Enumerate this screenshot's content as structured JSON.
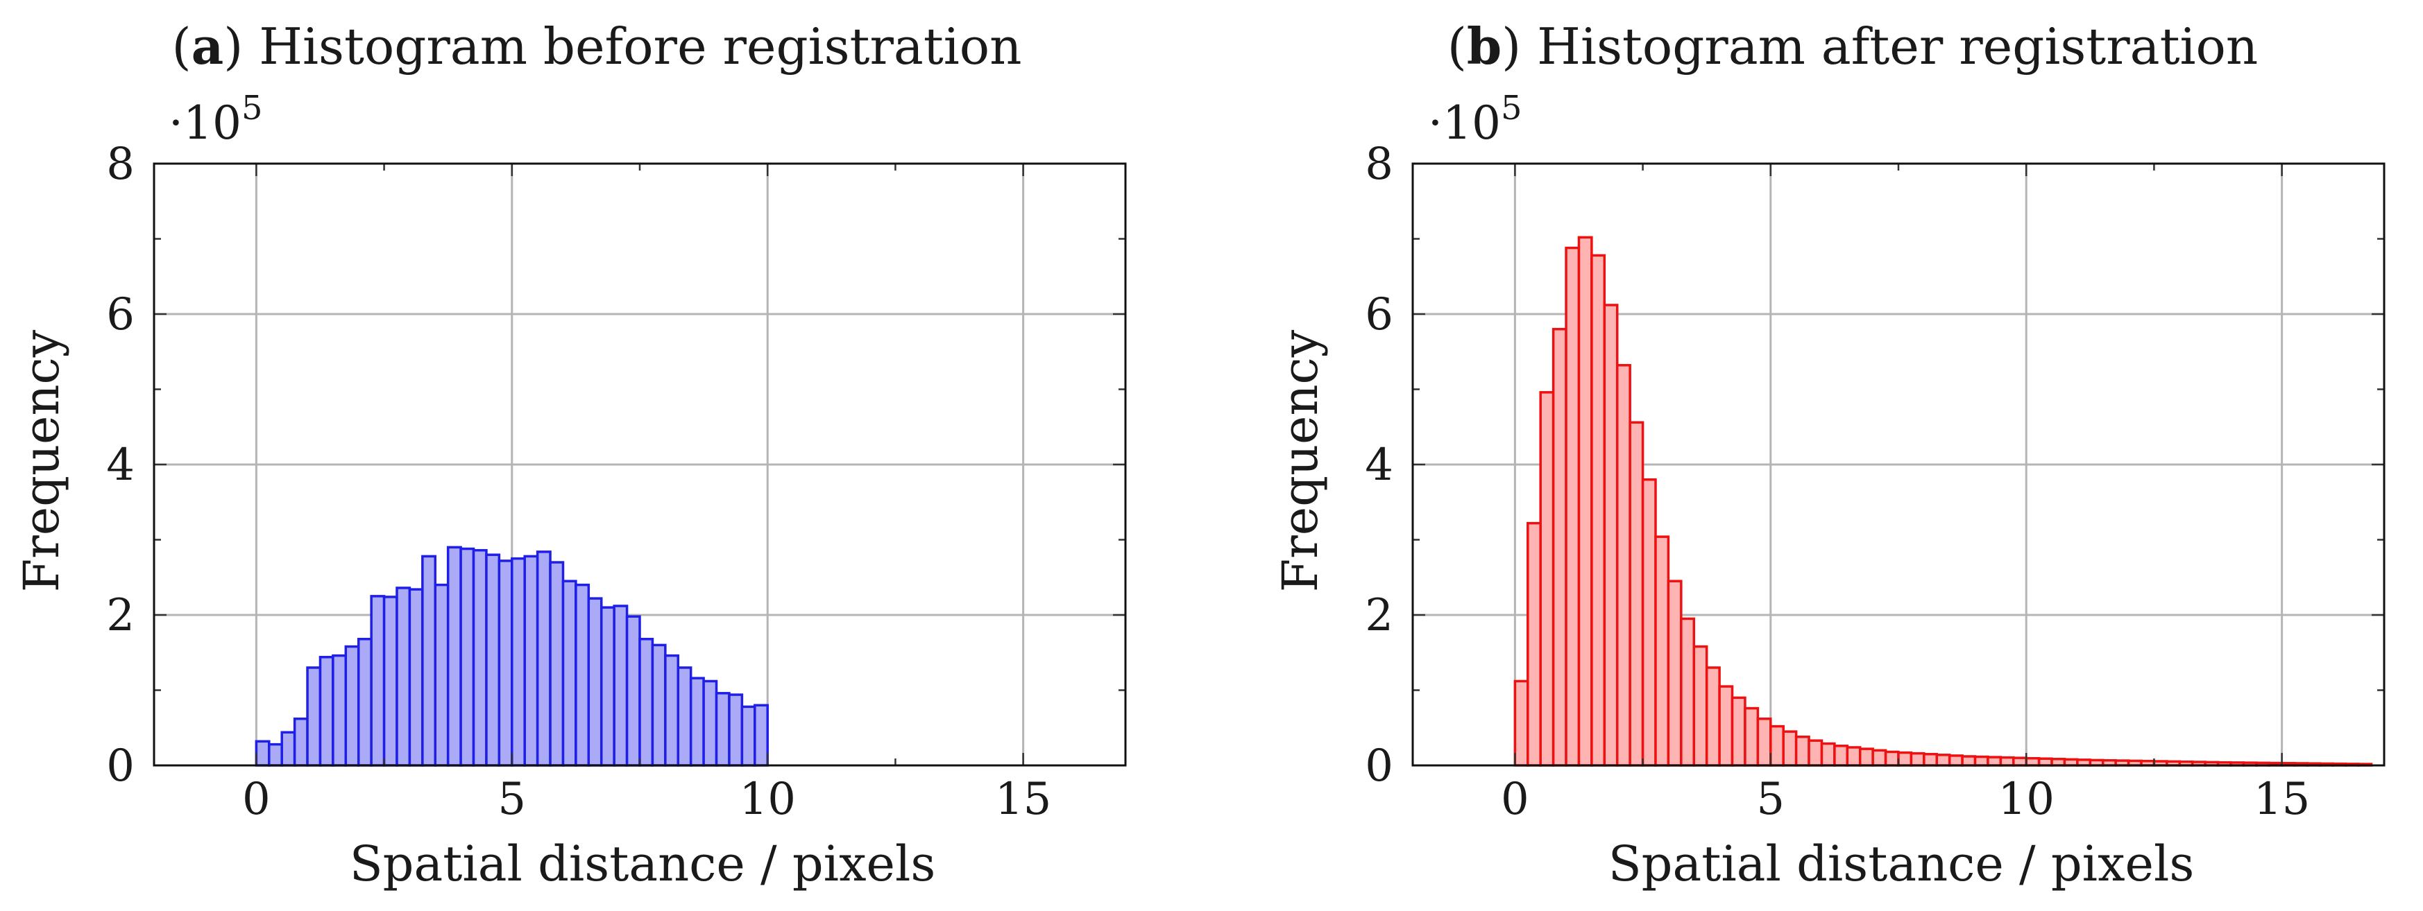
{
  "chart_data": [
    {
      "type": "bar",
      "title_prefix": "(",
      "title_letter": "a",
      "title_rest": ") Histogram before registration",
      "xlabel": "Spatial distance / pixels",
      "ylabel": "Frequency",
      "multiplier_prefix": "·10",
      "multiplier_exp": "5",
      "xlim": [
        -2,
        17
      ],
      "ylim": [
        0,
        8
      ],
      "xticks": [
        0,
        5,
        10,
        15
      ],
      "yticks": [
        0,
        2,
        4,
        6,
        8
      ],
      "x_tick_labels": [
        "0",
        "5",
        "10",
        "15"
      ],
      "y_tick_labels": [
        "0",
        "2",
        "4",
        "6",
        "8"
      ],
      "grid": true,
      "bin_width": 0.25,
      "bin_start": 0,
      "values": [
        0.32,
        0.28,
        0.44,
        0.62,
        1.3,
        1.44,
        1.46,
        1.58,
        1.68,
        2.25,
        2.24,
        2.36,
        2.34,
        2.78,
        2.4,
        2.9,
        2.88,
        2.86,
        2.8,
        2.72,
        2.75,
        2.78,
        2.84,
        2.7,
        2.45,
        2.4,
        2.22,
        2.1,
        2.12,
        1.98,
        1.68,
        1.6,
        1.46,
        1.3,
        1.16,
        1.12,
        0.96,
        0.94,
        0.78,
        0.8
      ],
      "colors": {
        "stroke": "#1f1fe6",
        "fill": "#aaaaf7"
      }
    },
    {
      "type": "bar",
      "title_prefix": "(",
      "title_letter": "b",
      "title_rest": ") Histogram after registration",
      "xlabel": "Spatial distance / pixels",
      "ylabel": "Frequency",
      "multiplier_prefix": "·10",
      "multiplier_exp": "5",
      "xlim": [
        -2,
        17
      ],
      "ylim": [
        0,
        8
      ],
      "xticks": [
        0,
        5,
        10,
        15
      ],
      "yticks": [
        0,
        2,
        4,
        6,
        8
      ],
      "x_tick_labels": [
        "0",
        "5",
        "10",
        "15"
      ],
      "y_tick_labels": [
        "0",
        "2",
        "4",
        "6",
        "8"
      ],
      "grid": true,
      "bin_width": 0.25,
      "bin_start": 0,
      "values": [
        1.12,
        3.22,
        4.96,
        5.8,
        6.88,
        7.02,
        6.78,
        6.12,
        5.32,
        4.56,
        3.8,
        3.04,
        2.45,
        1.95,
        1.58,
        1.3,
        1.05,
        0.9,
        0.76,
        0.62,
        0.52,
        0.45,
        0.38,
        0.33,
        0.29,
        0.26,
        0.24,
        0.22,
        0.2,
        0.18,
        0.17,
        0.16,
        0.15,
        0.14,
        0.13,
        0.12,
        0.115,
        0.11,
        0.105,
        0.1,
        0.095,
        0.09,
        0.085,
        0.08,
        0.075,
        0.07,
        0.067,
        0.064,
        0.061,
        0.058,
        0.055,
        0.052,
        0.049,
        0.046,
        0.043,
        0.04,
        0.038,
        0.036,
        0.034,
        0.032,
        0.03,
        0.028,
        0.026,
        0.024,
        0.022,
        0.02,
        0.018
      ],
      "colors": {
        "stroke": "#ee1111",
        "fill": "#ffb4b4"
      }
    }
  ]
}
